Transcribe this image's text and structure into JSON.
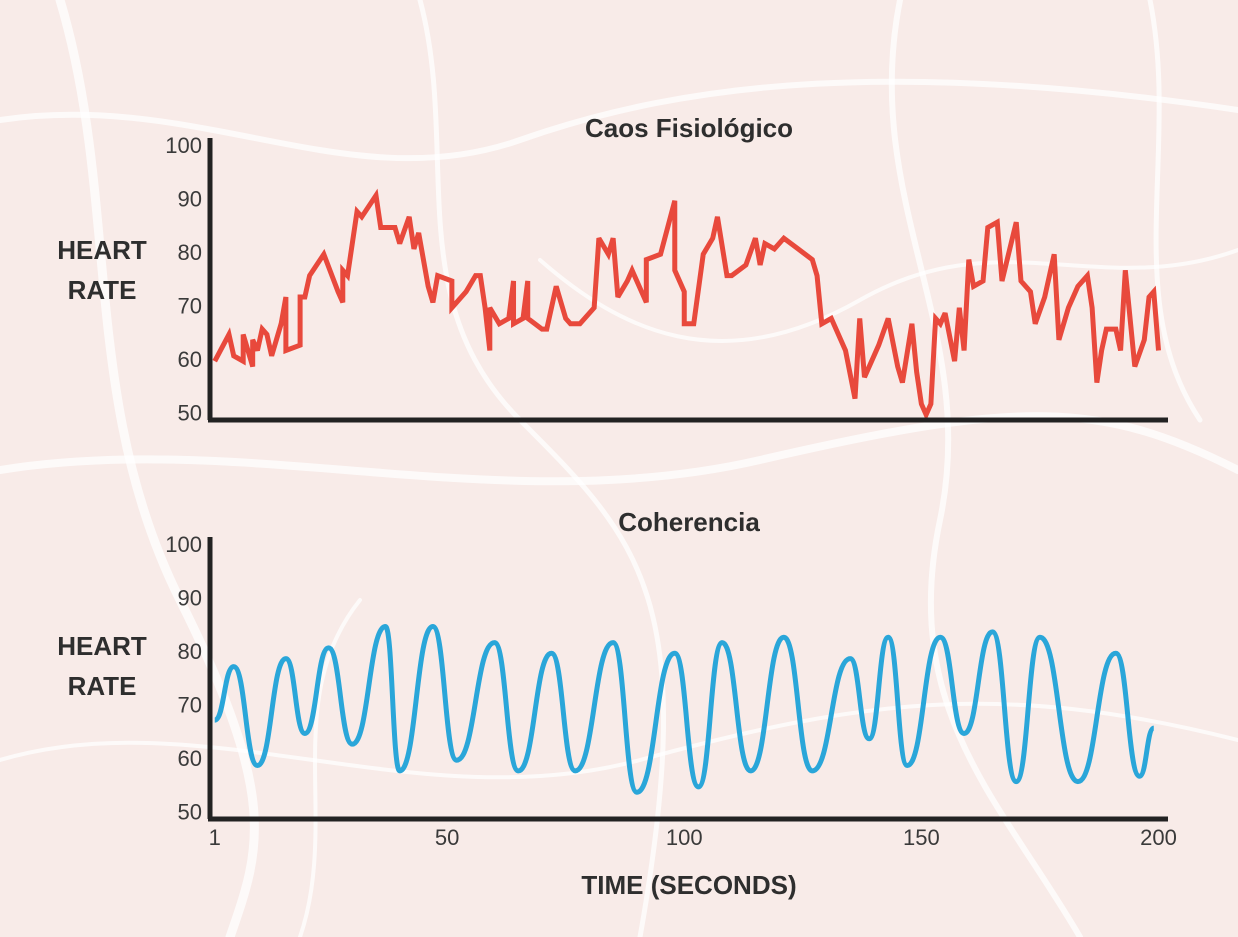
{
  "chart_data": [
    {
      "type": "line",
      "title": "Caos Fisiológico",
      "y_label": "HEART RATE",
      "xlim": [
        0,
        202
      ],
      "ylim": [
        49,
        101
      ],
      "yticks": [
        50,
        60,
        70,
        80,
        90,
        100
      ],
      "series": [
        {
          "color": "#e8493c",
          "smooth": false,
          "x": [
            1,
            4,
            5,
            7,
            7,
            9,
            9,
            10,
            11,
            12,
            13,
            15,
            16,
            16,
            19,
            19,
            20,
            21,
            24,
            27,
            28,
            28,
            29,
            31,
            32,
            35,
            36,
            39,
            40,
            42,
            43,
            44,
            46,
            47,
            48,
            51,
            51,
            54,
            56,
            57,
            58,
            59,
            59,
            61,
            63,
            64,
            64,
            66,
            67,
            67,
            70,
            71,
            73,
            75,
            76,
            78,
            81,
            82,
            84,
            85,
            86,
            88,
            89,
            92,
            92,
            95,
            98,
            98,
            100,
            100,
            102,
            104,
            106,
            107,
            109,
            110,
            113,
            115,
            116,
            117,
            119,
            121,
            124,
            127,
            128,
            129,
            131,
            134,
            136,
            137,
            138,
            141,
            143,
            145,
            146,
            148,
            149,
            150,
            151,
            152,
            153,
            154,
            155,
            157,
            158,
            159,
            160,
            161,
            163,
            164,
            166,
            167,
            170,
            171,
            173,
            174,
            176,
            178,
            179,
            181,
            183,
            185,
            186,
            187,
            188,
            189,
            191,
            192,
            193,
            195,
            197,
            198,
            199,
            200
          ],
          "values": [
            60,
            65,
            61,
            60,
            65,
            59,
            64,
            62,
            66,
            65,
            61,
            67,
            72,
            62,
            63,
            72,
            72,
            76,
            80,
            73,
            71,
            77,
            76,
            88,
            87,
            91,
            85,
            85,
            82,
            87,
            81,
            84,
            74,
            71,
            76,
            75,
            70,
            73,
            76,
            76,
            70,
            62,
            70,
            67,
            68,
            75,
            67,
            68,
            75,
            68,
            66,
            66,
            74,
            68,
            67,
            67,
            70,
            83,
            80,
            83,
            72,
            75,
            77,
            71,
            79,
            80,
            90,
            77,
            73,
            67,
            67,
            80,
            83,
            87,
            76,
            76,
            78,
            83,
            78,
            82,
            81,
            83,
            81,
            79,
            76,
            67,
            68,
            62,
            53,
            68,
            57,
            63,
            68,
            59,
            56,
            67,
            58,
            52,
            50,
            52,
            68,
            67,
            69,
            60,
            70,
            62,
            79,
            74,
            75,
            85,
            86,
            75,
            86,
            75,
            73,
            67,
            72,
            80,
            64,
            70,
            74,
            76,
            70,
            56,
            62,
            66,
            66,
            62,
            77,
            59,
            64,
            72,
            73,
            62
          ]
        }
      ]
    },
    {
      "type": "line",
      "title": "Coherencia",
      "y_label": "HEART RATE",
      "x_label": "TIME (SECONDS)",
      "xlim": [
        0,
        202
      ],
      "ylim": [
        49,
        101
      ],
      "yticks": [
        50,
        60,
        70,
        80,
        90,
        100
      ],
      "xticks": [
        1,
        50,
        100,
        150,
        200
      ],
      "series": [
        {
          "color": "#2aa6d9",
          "smooth": true,
          "x": [
            1,
            5,
            10,
            16,
            20,
            25,
            30,
            37,
            40,
            47,
            52,
            60,
            65,
            72,
            77,
            85,
            90,
            98,
            103,
            108,
            114,
            121,
            127,
            135,
            139,
            143,
            147,
            154,
            159,
            165,
            170,
            175,
            183,
            191,
            196,
            199
          ],
          "values": [
            67.5,
            77.5,
            59,
            79,
            65,
            81,
            63,
            85,
            58,
            85,
            60,
            82,
            58,
            80,
            58,
            82,
            54,
            80,
            55,
            82,
            58,
            83,
            58,
            79,
            64,
            83,
            59,
            83,
            65,
            84,
            56,
            83,
            56,
            80,
            57,
            66
          ]
        }
      ]
    }
  ]
}
